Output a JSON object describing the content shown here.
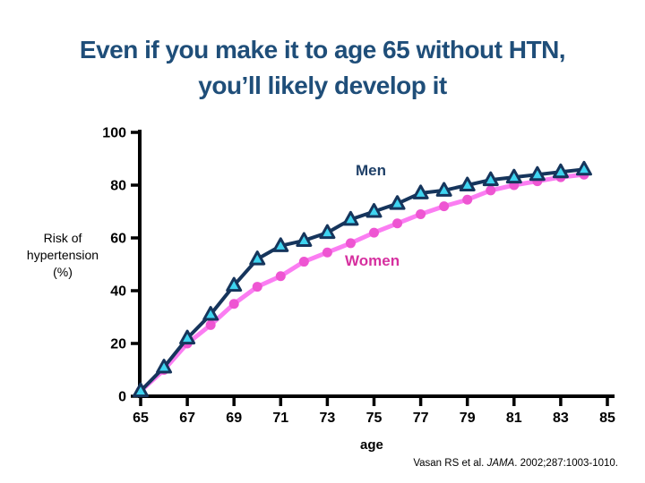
{
  "slide": {
    "title_line1": "Even if you make it to age 65 without HTN,",
    "title_line2": "you’ll likely develop it"
  },
  "chart_data": {
    "type": "line",
    "title": "",
    "xlabel": "age",
    "ylabel": "Risk of hypertension (%)",
    "ylabel_lines": [
      "Risk of",
      "hypertension",
      "(%)"
    ],
    "xlim": [
      65,
      85
    ],
    "ylim": [
      0,
      100
    ],
    "x_ticks": [
      65,
      67,
      69,
      71,
      73,
      75,
      77,
      79,
      81,
      83,
      85
    ],
    "y_ticks": [
      0,
      20,
      40,
      60,
      80,
      100
    ],
    "grid": false,
    "legend_position": "inline-annotations",
    "ages": [
      65,
      66,
      67,
      68,
      69,
      70,
      71,
      72,
      73,
      74,
      75,
      76,
      77,
      78,
      79,
      80,
      81,
      82,
      83,
      84
    ],
    "series": [
      {
        "name": "Men",
        "marker": "triangle",
        "line_color": "#16355C",
        "marker_fill": "#3FD4F0",
        "marker_stroke": "#16355C",
        "label_color": "#1F4068",
        "values": [
          2,
          11,
          22,
          31,
          42,
          52,
          57,
          59,
          62,
          67,
          70,
          73,
          77,
          78,
          80,
          82,
          83,
          84,
          85,
          86
        ]
      },
      {
        "name": "Women",
        "marker": "circle",
        "line_color": "#FB7DF2",
        "marker_fill": "#EE55D2",
        "marker_stroke": "#EE55D2",
        "label_color": "#D6309F",
        "values": [
          2,
          10,
          20,
          27,
          35,
          41.5,
          45.5,
          51,
          54.5,
          58,
          62,
          65.5,
          69,
          72,
          74.5,
          78,
          80,
          81.5,
          83,
          84
        ]
      }
    ]
  },
  "citation": {
    "pre": "Vasan RS et al. ",
    "journal": "JAMA",
    "post": ". 2002;287:1003-1010."
  },
  "colors": {
    "title": "#1F4E79",
    "axis": "#000000",
    "background": "#FFFFFF"
  }
}
